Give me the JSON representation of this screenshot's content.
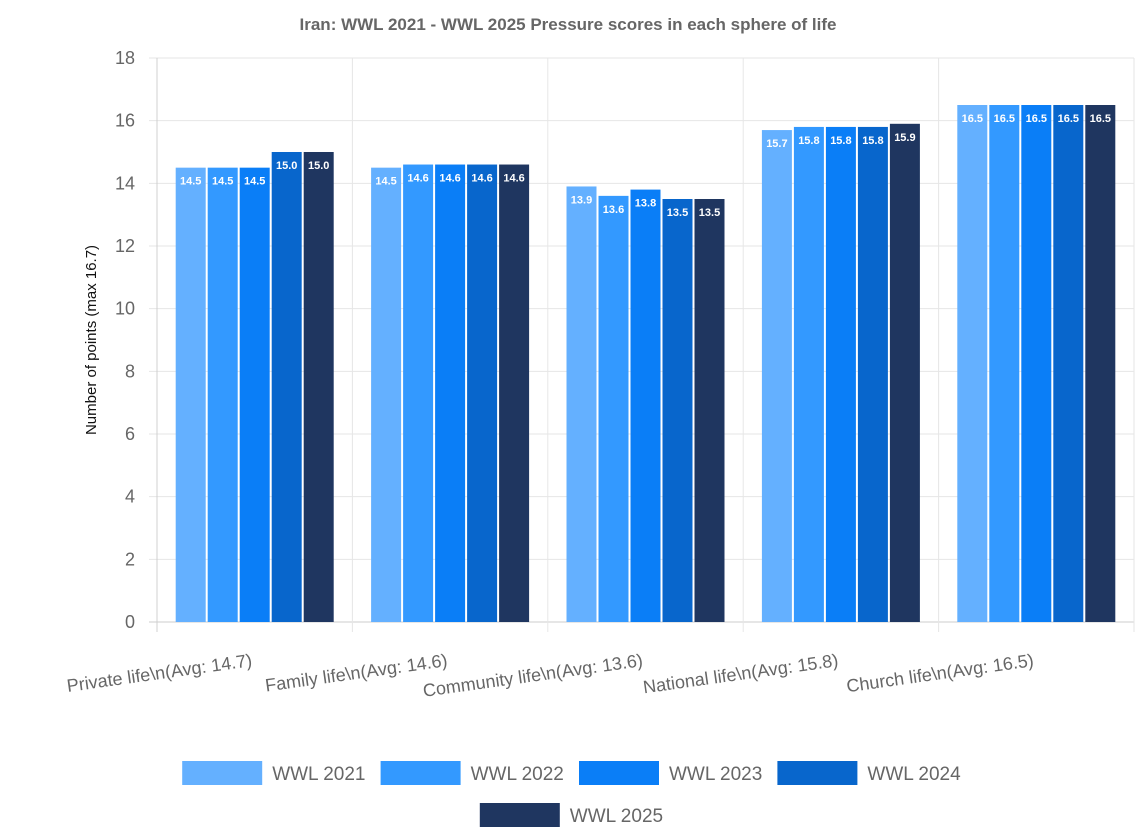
{
  "chart_data": {
    "type": "bar",
    "title": "Iran: WWL 2021 - WWL 2025 Pressure scores in each sphere of life",
    "xlabel": "",
    "ylabel": "Number of points (max 16.7)",
    "ylim": [
      0,
      18
    ],
    "yticks": [
      0,
      2,
      4,
      6,
      8,
      10,
      12,
      14,
      16,
      18
    ],
    "grid": true,
    "legend_position": "bottom",
    "categories": [
      "Private life\\n(Avg: 14.7)",
      "Family life\\n(Avg: 14.6)",
      "Community life\\n(Avg: 13.6)",
      "National life\\n(Avg: 15.8)",
      "Church life\\n(Avg: 16.5)"
    ],
    "series": [
      {
        "name": "WWL 2021",
        "color": "#64b0ff",
        "values": [
          14.5,
          14.5,
          13.9,
          15.7,
          16.5
        ],
        "labels": [
          "14.5",
          "14.5",
          "13.9",
          "15.7",
          "16.5"
        ]
      },
      {
        "name": "WWL 2022",
        "color": "#3399ff",
        "values": [
          14.5,
          14.6,
          13.6,
          15.8,
          16.5
        ],
        "labels": [
          "14.5",
          "14.6",
          "13.6",
          "15.8",
          "16.5"
        ]
      },
      {
        "name": "WWL 2023",
        "color": "#0a7ef7",
        "values": [
          14.5,
          14.6,
          13.8,
          15.8,
          16.5
        ],
        "labels": [
          "14.5",
          "14.6",
          "13.8",
          "15.8",
          "16.5"
        ]
      },
      {
        "name": "WWL 2024",
        "color": "#0866cc",
        "values": [
          15.0,
          14.6,
          13.5,
          15.8,
          16.5
        ],
        "labels": [
          "15.0",
          "14.6",
          "13.5",
          "15.8",
          "16.5"
        ]
      },
      {
        "name": "WWL 2025",
        "color": "#1f3660",
        "values": [
          15.0,
          14.6,
          13.5,
          15.9,
          16.5
        ],
        "labels": [
          "15.0",
          "14.6",
          "13.5",
          "15.9",
          "16.5"
        ]
      }
    ]
  }
}
